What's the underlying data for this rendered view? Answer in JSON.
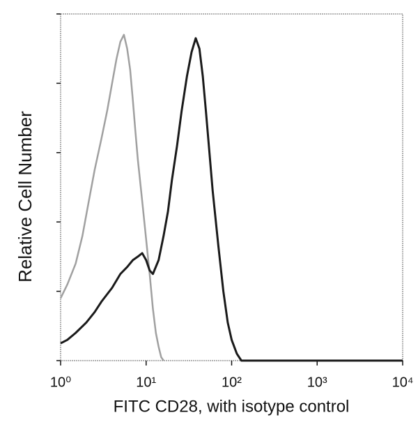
{
  "chart_data": {
    "type": "line",
    "x_label": "FITC CD28, with isotype control",
    "y_label": "Relative Cell Number",
    "xscale": "log",
    "xlim": [
      1,
      10000
    ],
    "xticks": [
      {
        "value": 1,
        "label": "10⁰"
      },
      {
        "value": 10,
        "label": "10¹"
      },
      {
        "value": 100,
        "label": "10²"
      },
      {
        "value": 1000,
        "label": "10³"
      },
      {
        "value": 10000,
        "label": "10⁴"
      }
    ],
    "ylim": [
      0,
      100
    ],
    "yticks": [
      0,
      20,
      40,
      60,
      80,
      100
    ],
    "series": [
      {
        "color": "#a0a0a0",
        "x": [
          1,
          1.2,
          1.5,
          1.8,
          2.1,
          2.5,
          3,
          3.5,
          4,
          4.5,
          5,
          5.5,
          6,
          6.5,
          7,
          7.5,
          8,
          9,
          10,
          11,
          12,
          13,
          14,
          15,
          16
        ],
        "values": [
          18,
          22,
          28,
          36,
          45,
          55,
          64,
          72,
          80,
          87,
          92,
          94,
          90,
          84,
          75,
          66,
          58,
          46,
          35,
          25,
          15,
          8,
          4,
          1,
          0
        ]
      },
      {
        "color": "#1a1a1a",
        "x": [
          1,
          1.2,
          1.5,
          2,
          2.5,
          3,
          4,
          5,
          6,
          7,
          8,
          9,
          10,
          11,
          12,
          14,
          16,
          18,
          20,
          23,
          26,
          30,
          34,
          38,
          42,
          46,
          50,
          55,
          60,
          70,
          80,
          90,
          100,
          115,
          130,
          1000,
          10000
        ],
        "values": [
          5,
          6,
          8,
          11,
          14,
          17,
          21,
          25,
          27,
          29,
          30,
          31,
          29,
          26,
          25,
          29,
          36,
          43,
          52,
          62,
          72,
          82,
          89,
          93,
          90,
          82,
          72,
          60,
          49,
          33,
          20,
          11,
          6,
          2,
          0,
          0,
          0
        ]
      }
    ]
  }
}
